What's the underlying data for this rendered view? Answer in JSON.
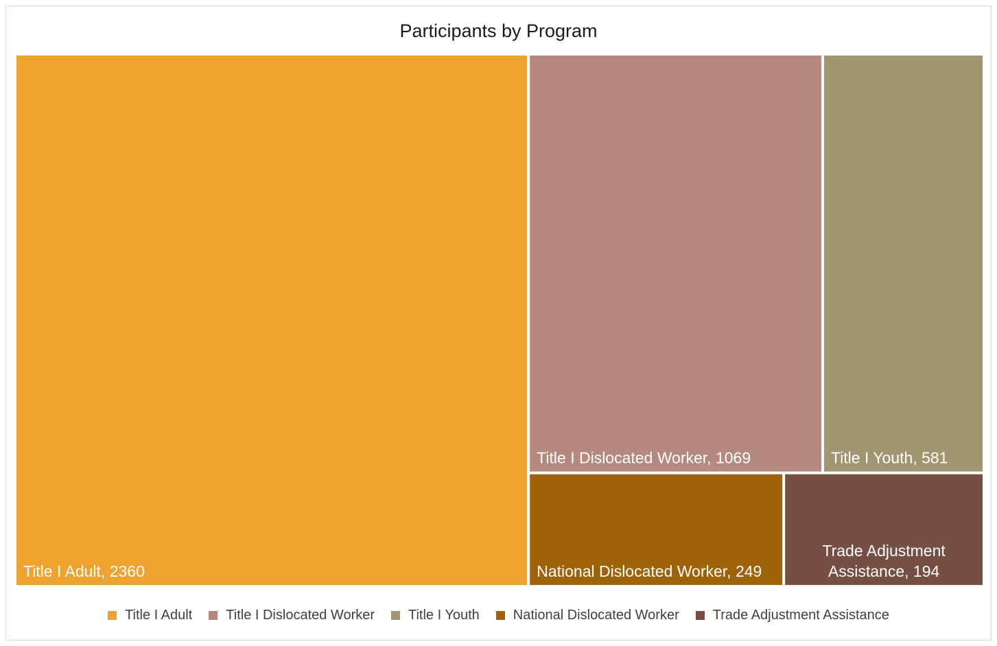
{
  "chart_data": {
    "type": "treemap",
    "title": "Participants by Program",
    "legend_position": "bottom",
    "series": [
      {
        "name": "Title I Adult",
        "value": 2360,
        "color": "#eea230",
        "label_lines": [
          "Title I Adult, 2360"
        ]
      },
      {
        "name": "Title I Dislocated Worker",
        "value": 1069,
        "color": "#b5897e",
        "label_lines": [
          "Title I Dislocated Worker, 1069"
        ]
      },
      {
        "name": "Title I Youth",
        "value": 581,
        "color": "#a29572",
        "label_lines": [
          "Title I Youth, 581"
        ]
      },
      {
        "name": "National Dislocated Worker",
        "value": 249,
        "color": "#9e620b",
        "label_lines": [
          "National Dislocated Worker, 249"
        ]
      },
      {
        "name": "Trade Adjustment Assistance",
        "value": 194,
        "color": "#764f43",
        "label_lines": [
          "Trade Adjustment",
          "Assistance, 194"
        ]
      }
    ]
  }
}
